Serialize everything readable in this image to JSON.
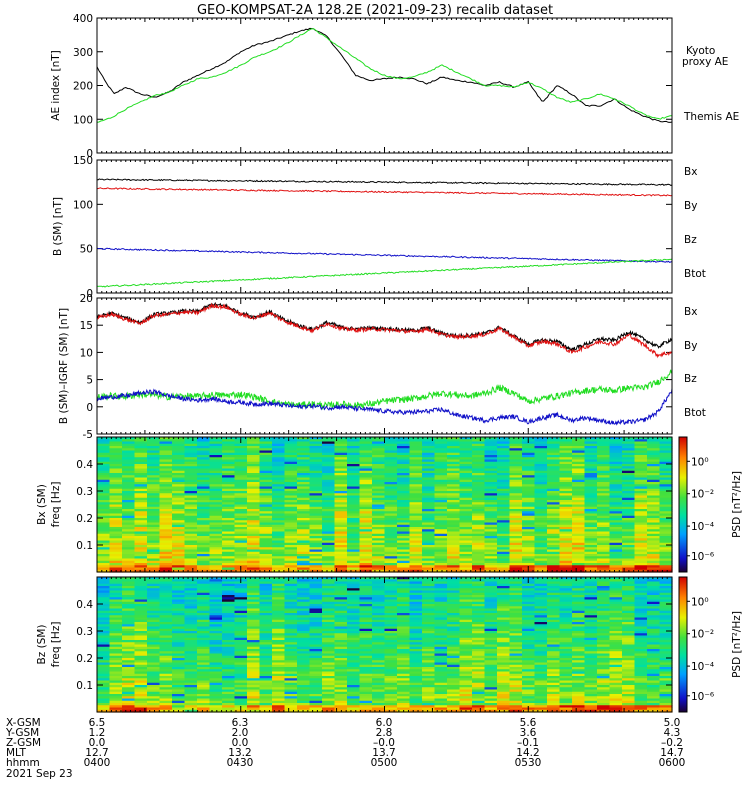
{
  "title": "GEO-KOMPSAT-2A 128.2E (2021-09-23) recalib dataset",
  "colors": {
    "black": "#000000",
    "green": "#22dd22",
    "red": "#e01010",
    "blue": "#1010c8"
  },
  "chart_data": [
    {
      "type": "line",
      "ylabel": "AE index [nT]",
      "ylim": [
        0,
        400
      ],
      "yticks": [
        "0",
        "100",
        "200",
        "300",
        "400"
      ],
      "x_hours": [
        4.0,
        6.0
      ],
      "series": [
        {
          "name": "Themis AE",
          "color": "#000000",
          "x": [
            4.0,
            4.03,
            4.06,
            4.1,
            4.15,
            4.2,
            4.25,
            4.3,
            4.35,
            4.4,
            4.45,
            4.5,
            4.55,
            4.6,
            4.65,
            4.7,
            4.75,
            4.8,
            4.85,
            4.9,
            4.95,
            5.0,
            5.05,
            5.1,
            5.15,
            5.2,
            5.25,
            5.3,
            5.35,
            5.4,
            5.45,
            5.5,
            5.55,
            5.6,
            5.65,
            5.7,
            5.75,
            5.8,
            5.85,
            5.9,
            5.95,
            6.0
          ],
          "values": [
            255,
            210,
            175,
            195,
            175,
            165,
            180,
            210,
            230,
            250,
            270,
            300,
            320,
            330,
            345,
            360,
            370,
            345,
            290,
            230,
            215,
            220,
            225,
            220,
            205,
            225,
            215,
            210,
            200,
            210,
            195,
            210,
            150,
            200,
            175,
            140,
            140,
            160,
            130,
            110,
            95,
            90
          ]
        },
        {
          "name": "Kyoto proxy AE",
          "color": "#22dd22",
          "x": [
            4.0,
            4.05,
            4.1,
            4.15,
            4.2,
            4.25,
            4.3,
            4.35,
            4.4,
            4.45,
            4.5,
            4.55,
            4.6,
            4.65,
            4.7,
            4.75,
            4.8,
            4.85,
            4.9,
            4.95,
            5.0,
            5.05,
            5.1,
            5.15,
            5.2,
            5.25,
            5.3,
            5.35,
            5.4,
            5.45,
            5.5,
            5.55,
            5.6,
            5.65,
            5.7,
            5.75,
            5.8,
            5.85,
            5.9,
            5.95,
            6.0
          ],
          "values": [
            90,
            105,
            130,
            150,
            170,
            180,
            200,
            220,
            225,
            240,
            260,
            285,
            300,
            320,
            345,
            370,
            340,
            310,
            280,
            250,
            230,
            220,
            225,
            240,
            260,
            240,
            220,
            200,
            200,
            195,
            210,
            190,
            165,
            150,
            160,
            175,
            160,
            140,
            115,
            100,
            110
          ]
        }
      ],
      "legend": [
        {
          "label": "Kyoto\nproxy AE",
          "color": "#22dd22"
        },
        {
          "label": "Themis AE",
          "color": "#000000"
        }
      ]
    },
    {
      "type": "line",
      "ylabel": "B (SM) [nT]",
      "ylim": [
        0,
        150
      ],
      "yticks": [
        "0",
        "50",
        "100",
        "150"
      ],
      "series": [
        {
          "name": "Btot",
          "color": "#000000",
          "start": 128,
          "end": 122
        },
        {
          "name": "Bz",
          "color": "#e01010",
          "start": 118,
          "end": 110
        },
        {
          "name": "Bx",
          "color": "#1010c8",
          "start": 50,
          "end": 35
        },
        {
          "name": "By",
          "color": "#22dd22",
          "start": 7,
          "end": 38
        }
      ],
      "legend": [
        {
          "label": "Bx",
          "color": "#1010c8"
        },
        {
          "label": "By",
          "color": "#22dd22"
        },
        {
          "label": "Bz",
          "color": "#e01010"
        },
        {
          "label": "Btot",
          "color": "#000000"
        }
      ]
    },
    {
      "type": "line",
      "ylabel": "B (SM)–IGRF (SM) [nT]",
      "ylim": [
        -5,
        20
      ],
      "yticks": [
        "-5",
        "0",
        "5",
        "10",
        "15",
        "20"
      ],
      "series": [
        {
          "name": "Btot",
          "color": "#000000",
          "x": [
            4.0,
            4.05,
            4.1,
            4.15,
            4.2,
            4.25,
            4.3,
            4.35,
            4.4,
            4.45,
            4.5,
            4.55,
            4.6,
            4.65,
            4.7,
            4.75,
            4.8,
            4.85,
            4.9,
            4.95,
            5.0,
            5.05,
            5.1,
            5.15,
            5.2,
            5.25,
            5.3,
            5.35,
            5.4,
            5.45,
            5.5,
            5.55,
            5.6,
            5.65,
            5.7,
            5.75,
            5.8,
            5.85,
            5.9,
            5.95,
            6.0
          ],
          "values": [
            16.5,
            17.2,
            16.3,
            15.5,
            17.0,
            17.2,
            17.6,
            17.5,
            18.8,
            18.5,
            17.2,
            16.5,
            17.5,
            16.0,
            15.0,
            14.2,
            15.5,
            14.6,
            14.3,
            14.5,
            14.4,
            14.2,
            14.0,
            14.5,
            13.5,
            13.0,
            13.2,
            13.5,
            14.6,
            13.0,
            11.5,
            12.3,
            12.0,
            10.5,
            11.5,
            12.5,
            12.2,
            13.8,
            12.5,
            11.0,
            12.5
          ]
        },
        {
          "name": "Bz",
          "color": "#e01010",
          "x": [
            4.0,
            4.05,
            4.1,
            4.15,
            4.2,
            4.25,
            4.3,
            4.35,
            4.4,
            4.45,
            4.5,
            4.55,
            4.6,
            4.65,
            4.7,
            4.75,
            4.8,
            4.85,
            4.9,
            4.95,
            5.0,
            5.05,
            5.1,
            5.15,
            5.2,
            5.25,
            5.3,
            5.35,
            5.4,
            5.45,
            5.5,
            5.55,
            5.6,
            5.65,
            5.7,
            5.75,
            5.8,
            5.85,
            5.9,
            5.95,
            6.0
          ],
          "values": [
            16.3,
            17.0,
            16.1,
            15.3,
            16.8,
            17.0,
            17.4,
            17.3,
            18.6,
            18.3,
            17.0,
            16.3,
            17.3,
            15.8,
            14.8,
            14.0,
            15.3,
            14.4,
            14.1,
            14.3,
            14.2,
            14.0,
            13.8,
            14.3,
            13.3,
            12.8,
            13.0,
            13.3,
            14.4,
            12.8,
            11.2,
            12.0,
            11.6,
            10.0,
            11.0,
            12.0,
            11.5,
            13.2,
            11.5,
            9.5,
            10.0
          ]
        },
        {
          "name": "By",
          "color": "#22dd22",
          "x": [
            4.0,
            4.05,
            4.1,
            4.15,
            4.2,
            4.25,
            4.3,
            4.35,
            4.4,
            4.45,
            4.5,
            4.55,
            4.6,
            4.65,
            4.7,
            4.75,
            4.8,
            4.85,
            4.9,
            4.95,
            5.0,
            5.05,
            5.1,
            5.15,
            5.2,
            5.25,
            5.3,
            5.35,
            5.4,
            5.45,
            5.5,
            5.55,
            5.6,
            5.65,
            5.7,
            5.75,
            5.8,
            5.85,
            5.9,
            5.95,
            6.0
          ],
          "values": [
            1.8,
            2.0,
            1.9,
            2.3,
            2.2,
            1.8,
            2.0,
            1.9,
            2.2,
            2.1,
            2.3,
            1.8,
            1.0,
            0.5,
            0.3,
            0.5,
            0.2,
            0.5,
            0.3,
            0.5,
            1.0,
            1.3,
            1.5,
            2.0,
            2.5,
            2.2,
            2.0,
            2.5,
            3.5,
            2.5,
            1.0,
            1.5,
            2.0,
            2.5,
            3.0,
            3.2,
            3.0,
            3.5,
            3.5,
            4.5,
            6.5
          ]
        },
        {
          "name": "Bx",
          "color": "#1010c8",
          "x": [
            4.0,
            4.05,
            4.1,
            4.15,
            4.2,
            4.25,
            4.3,
            4.35,
            4.4,
            4.45,
            4.5,
            4.55,
            4.6,
            4.65,
            4.7,
            4.75,
            4.8,
            4.85,
            4.9,
            4.95,
            5.0,
            5.05,
            5.1,
            5.15,
            5.2,
            5.25,
            5.3,
            5.35,
            5.4,
            5.45,
            5.5,
            5.55,
            5.6,
            5.65,
            5.7,
            5.75,
            5.8,
            5.85,
            5.9,
            5.95,
            6.0
          ],
          "values": [
            1.5,
            1.8,
            2.0,
            2.5,
            2.8,
            2.0,
            1.5,
            1.2,
            1.5,
            1.0,
            0.8,
            0.5,
            0.6,
            0.3,
            0.0,
            0.2,
            -0.2,
            0.0,
            -0.3,
            -0.5,
            -0.8,
            -1.0,
            -1.0,
            -0.8,
            -0.5,
            -1.5,
            -2.0,
            -2.5,
            -2.0,
            -1.8,
            -2.8,
            -2.0,
            -1.5,
            -2.5,
            -2.0,
            -2.5,
            -3.0,
            -2.8,
            -2.5,
            -1.0,
            3.0
          ]
        }
      ],
      "legend": [
        {
          "label": "Bx",
          "color": "#1010c8"
        },
        {
          "label": "By",
          "color": "#22dd22"
        },
        {
          "label": "Bz",
          "color": "#e01010"
        },
        {
          "label": "Btot",
          "color": "#000000"
        }
      ]
    },
    {
      "type": "heatmap",
      "ylabel": "Bx (SM) freq [Hz]",
      "ylim": [
        0,
        0.5
      ],
      "yticks": [
        "0.1",
        "0.2",
        "0.3",
        "0.4"
      ],
      "colorbar": {
        "label": "PSD [nT²/Hz]",
        "ticks": [
          "10⁰",
          "10⁻²",
          "10⁻⁴",
          "10⁻⁶"
        ]
      }
    },
    {
      "type": "heatmap",
      "ylabel": "Bz (SM) freq [Hz]",
      "ylim": [
        0,
        0.5
      ],
      "yticks": [
        "0.1",
        "0.2",
        "0.3",
        "0.4"
      ],
      "colorbar": {
        "label": "PSD [nT²/Hz]",
        "ticks": [
          "10⁰",
          "10⁻²",
          "10⁻⁴",
          "10⁻⁶"
        ]
      }
    }
  ],
  "ephemeris": {
    "row_labels": [
      "X-GSM",
      "Y-GSM",
      "Z-GSM",
      "MLT",
      "hhmm"
    ],
    "date": "2021 Sep 23",
    "columns": [
      {
        "X-GSM": "6.5",
        "Y-GSM": "1.2",
        "Z-GSM": "0.0",
        "MLT": "12.7",
        "hhmm": "0400"
      },
      {
        "X-GSM": "6.3",
        "Y-GSM": "2.0",
        "Z-GSM": "0.0",
        "MLT": "13.2",
        "hhmm": "0430"
      },
      {
        "X-GSM": "6.0",
        "Y-GSM": "2.8",
        "Z-GSM": "–0.0",
        "MLT": "13.7",
        "hhmm": "0500"
      },
      {
        "X-GSM": "5.6",
        "Y-GSM": "3.6",
        "Z-GSM": "–0.1",
        "MLT": "14.2",
        "hhmm": "0530"
      },
      {
        "X-GSM": "5.0",
        "Y-GSM": "4.3",
        "Z-GSM": "–0.2",
        "MLT": "14.7",
        "hhmm": "0600"
      }
    ]
  }
}
